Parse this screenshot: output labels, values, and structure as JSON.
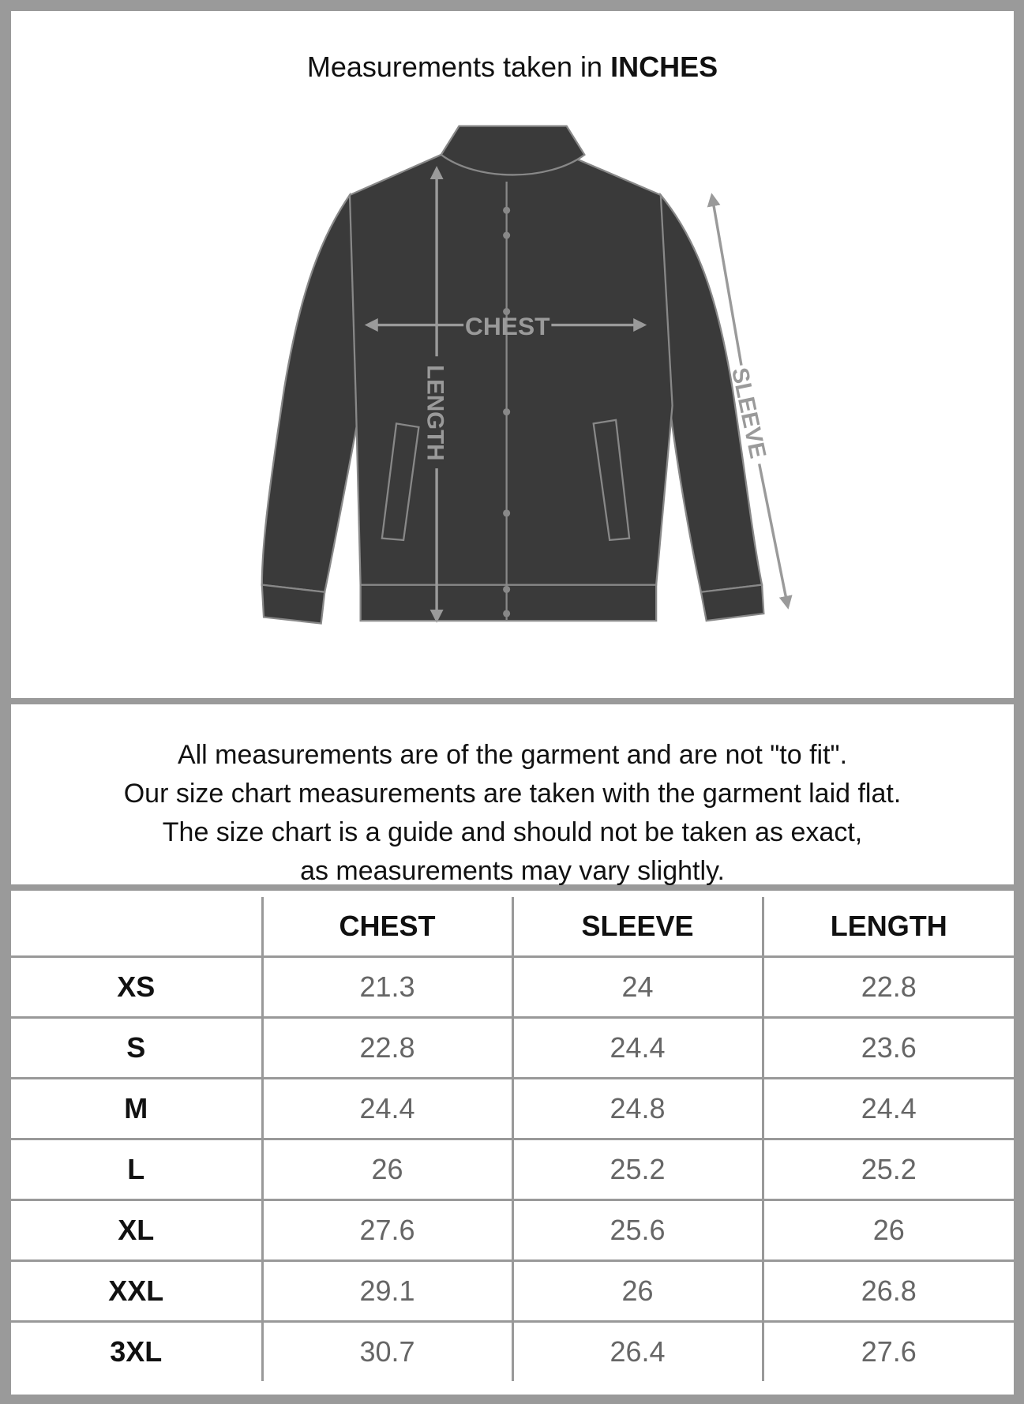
{
  "header": {
    "title_prefix": "Measurements taken in",
    "title_unit": "INCHES"
  },
  "diagram_labels": {
    "chest": "CHEST",
    "length": "LENGTH",
    "sleeve": "SLEEVE"
  },
  "notes": [
    "All measurements are of the garment and are not \"to fit\".",
    "Our size chart measurements are taken with the garment laid flat.",
    "The size chart is a guide and should not be taken as exact,",
    "as measurements may vary slightly."
  ],
  "table": {
    "headers": [
      "",
      "CHEST",
      "SLEEVE",
      "LENGTH"
    ],
    "rows": [
      {
        "size": "XS",
        "chest": "21.3",
        "sleeve": "24",
        "length": "22.8"
      },
      {
        "size": "S",
        "chest": "22.8",
        "sleeve": "24.4",
        "length": "23.6"
      },
      {
        "size": "M",
        "chest": "24.4",
        "sleeve": "24.8",
        "length": "24.4"
      },
      {
        "size": "L",
        "chest": "26",
        "sleeve": "25.2",
        "length": "25.2"
      },
      {
        "size": "XL",
        "chest": "27.6",
        "sleeve": "25.6",
        "length": "26"
      },
      {
        "size": "XXL",
        "chest": "29.1",
        "sleeve": "26",
        "length": "26.8"
      },
      {
        "size": "3XL",
        "chest": "30.7",
        "sleeve": "26.4",
        "length": "27.6"
      }
    ]
  },
  "colors": {
    "border": "#9a9a9a",
    "jacket": "#3a3a3a",
    "arrow": "#9a9a9a",
    "value_text": "#666666"
  }
}
